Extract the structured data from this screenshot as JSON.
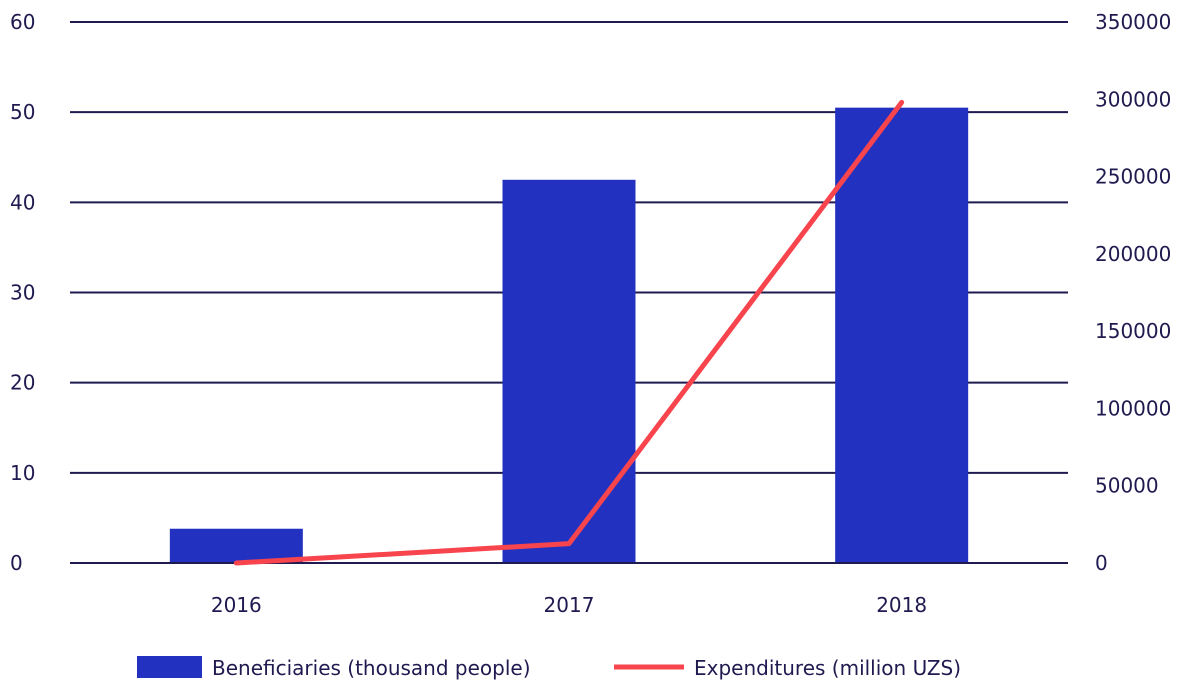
{
  "chart_data": {
    "type": "bar+line",
    "categories": [
      "2016",
      "2017",
      "2018"
    ],
    "series": [
      {
        "name": "Beneficiaries (thousand people)",
        "type": "bar",
        "axis": "left",
        "color": "#2231c0",
        "values": [
          3.8,
          42.5,
          50.5
        ]
      },
      {
        "name": "Expenditures (million UZS)",
        "type": "line",
        "axis": "right",
        "color": "#f7444d",
        "values": [
          0,
          12500,
          298000
        ]
      }
    ],
    "y_left": {
      "ylim": [
        0,
        60
      ],
      "ticks": [
        "0",
        "10",
        "20",
        "30",
        "40",
        "50",
        "60"
      ]
    },
    "y_right": {
      "ylim": [
        0,
        350000
      ],
      "ticks": [
        "0",
        "50000",
        "100000",
        "150000",
        "200000",
        "250000",
        "300000",
        "350000"
      ]
    },
    "grid": true,
    "legend": "bottom"
  }
}
